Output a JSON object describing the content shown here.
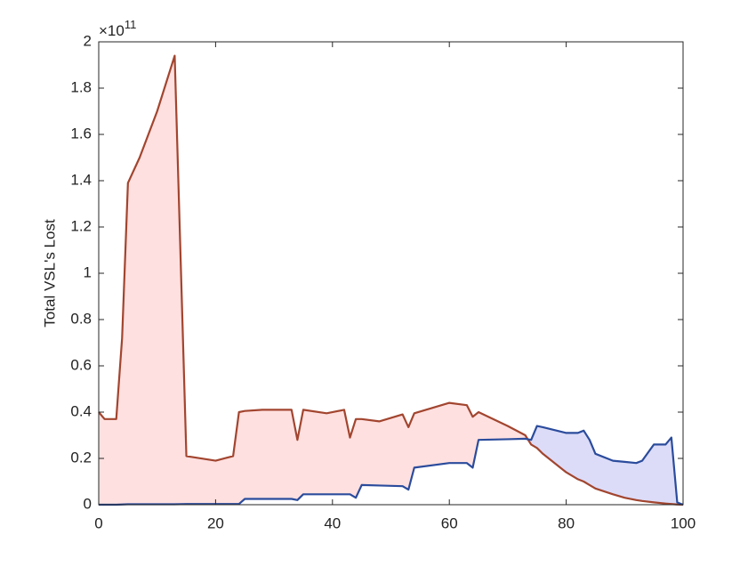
{
  "chart_data": {
    "type": "line",
    "ylabel": "Total VSL's Lost",
    "y_scale_label": {
      "base": "×10",
      "exponent": "11"
    },
    "xlim": [
      0,
      100
    ],
    "xticks": [
      0,
      20,
      40,
      60,
      80,
      100
    ],
    "ylim": [
      0,
      2
    ],
    "yticks": [
      0,
      0.2,
      0.4,
      0.6,
      0.8,
      1,
      1.2,
      1.4,
      1.6,
      1.8,
      2
    ],
    "fill_between": true,
    "x": [
      0,
      1,
      3,
      4,
      5,
      7,
      10,
      13,
      15,
      20,
      23,
      24,
      25,
      28,
      33,
      34,
      35,
      39,
      42,
      43,
      44,
      45,
      48,
      52,
      53,
      54,
      60,
      63,
      64,
      65,
      70,
      73,
      74,
      75,
      76,
      80,
      82,
      83,
      84,
      85,
      88,
      90,
      92,
      93,
      95,
      97,
      98,
      99,
      100
    ],
    "series": [
      {
        "color": "#a2452f",
        "fill": "#ffe0e0",
        "values": [
          0.4,
          0.37,
          0.37,
          0.72,
          1.39,
          1.5,
          1.7,
          1.94,
          0.21,
          0.19,
          0.21,
          0.4,
          0.405,
          0.41,
          0.41,
          0.28,
          0.41,
          0.395,
          0.41,
          0.29,
          0.37,
          0.37,
          0.36,
          0.39,
          0.335,
          0.395,
          0.44,
          0.43,
          0.38,
          0.4,
          0.34,
          0.3,
          0.26,
          0.245,
          0.22,
          0.14,
          0.11,
          0.1,
          0.085,
          0.07,
          0.045,
          0.03,
          0.02,
          0.016,
          0.01,
          0.005,
          0.003,
          0.001,
          0
        ]
      },
      {
        "color": "#2b4c9c",
        "fill": "#dcdcf8",
        "values": [
          0,
          0,
          0,
          0.001,
          0.002,
          0.002,
          0.002,
          0.002,
          0.003,
          0.003,
          0.003,
          0.003,
          0.025,
          0.025,
          0.025,
          0.02,
          0.045,
          0.045,
          0.045,
          0.045,
          0.03,
          0.085,
          0.083,
          0.08,
          0.065,
          0.16,
          0.18,
          0.18,
          0.16,
          0.28,
          0.283,
          0.285,
          0.28,
          0.34,
          0.335,
          0.31,
          0.31,
          0.32,
          0.28,
          0.22,
          0.19,
          0.185,
          0.18,
          0.19,
          0.26,
          0.26,
          0.29,
          0.01,
          0
        ]
      }
    ]
  }
}
